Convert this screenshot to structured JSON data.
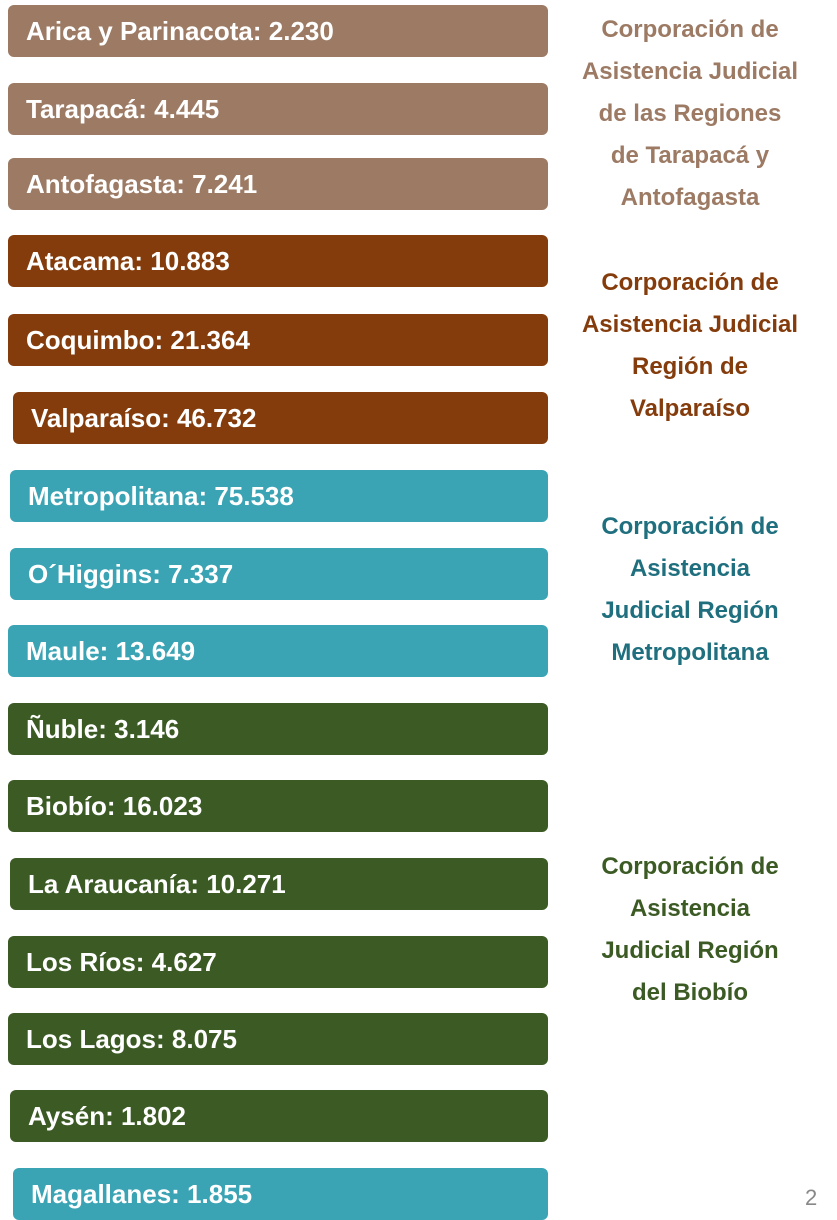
{
  "items": [
    {
      "label": "Arica y Parinacota: 2.230",
      "group": 0
    },
    {
      "label": "Tarapacá: 4.445",
      "group": 0
    },
    {
      "label": "Antofagasta: 7.241",
      "group": 0
    },
    {
      "label": "Atacama: 10.883",
      "group": 1
    },
    {
      "label": "Coquimbo:  21.364",
      "group": 1
    },
    {
      "label": "Valparaíso: 46.732",
      "group": 1
    },
    {
      "label": "Metropolitana: 75.538",
      "group": 2
    },
    {
      "label": "O´Higgins: 7.337",
      "group": 2
    },
    {
      "label": "Maule: 13.649",
      "group": 2
    },
    {
      "label": "Ñuble: 3.146",
      "group": 3
    },
    {
      "label": "Biobío: 16.023",
      "group": 3
    },
    {
      "label": "La Araucanía: 10.271",
      "group": 3
    },
    {
      "label": "Los Ríos: 4.627",
      "group": 3
    },
    {
      "label": "Los Lagos: 8.075",
      "group": 3
    },
    {
      "label": "Aysén: 1.802",
      "group": 3
    },
    {
      "label": "Magallanes: 1.855",
      "group": 2
    }
  ],
  "groups": [
    {
      "lines": [
        "Corporación de",
        "Asistencia Judicial",
        "de las Regiones",
        "de Tarapacá y",
        "Antofagasta"
      ],
      "color": "#9c7a64",
      "text_color": "#9c7a64"
    },
    {
      "lines": [
        "Corporación de",
        "Asistencia Judicial",
        "Región de",
        "Valparaíso"
      ],
      "color": "#843c0c",
      "text_color": "#843c0c"
    },
    {
      "lines": [
        "Corporación de",
        "Asistencia",
        "Judicial Región",
        "Metropolitana"
      ],
      "color": "#3aa3b4",
      "text_color": "#1f6f7f"
    },
    {
      "lines": [
        "Corporación de",
        "Asistencia",
        "Judicial Región",
        "del Biobío"
      ],
      "color": "#3b5a24",
      "text_color": "#3b5a24"
    }
  ],
  "page_number": "2"
}
